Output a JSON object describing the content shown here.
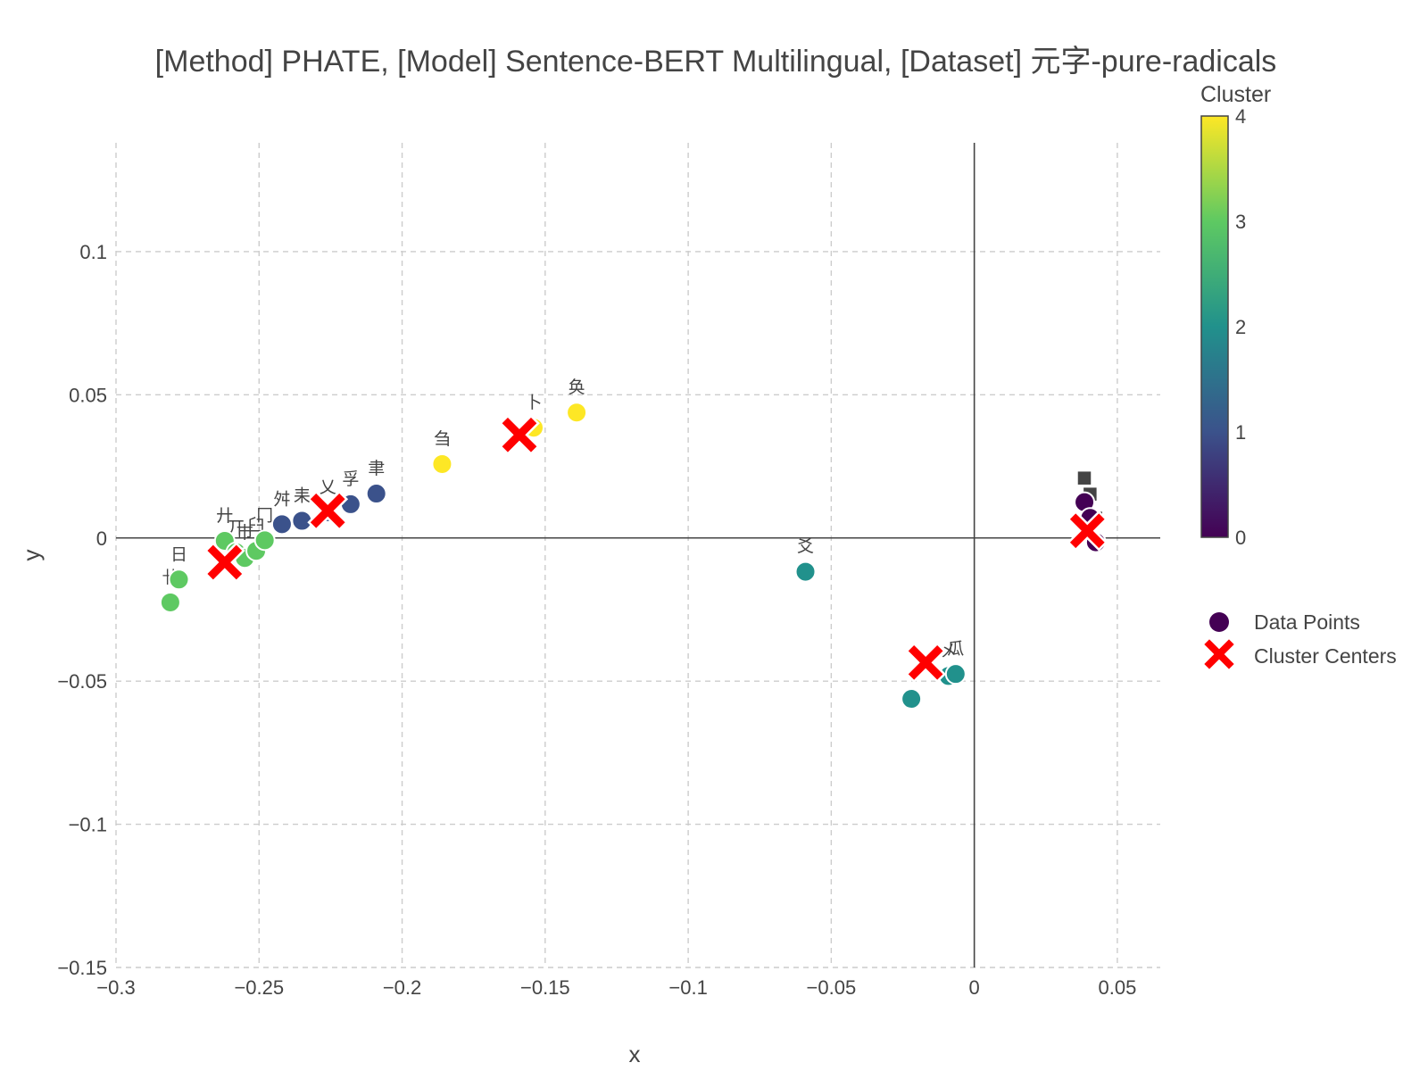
{
  "chart_data": {
    "type": "scatter",
    "title": "[Method] PHATE, [Model] Sentence-BERT Multilingual, [Dataset] 元字-pure-radicals",
    "xlabel": "x",
    "ylabel": "y",
    "xlim": [
      -0.3,
      0.065
    ],
    "ylim": [
      -0.15,
      0.138
    ],
    "xticks": [
      -0.3,
      -0.25,
      -0.2,
      -0.15,
      -0.1,
      -0.05,
      0,
      0.05
    ],
    "xtick_labels": [
      "−0.3",
      "−0.25",
      "−0.2",
      "−0.15",
      "−0.1",
      "−0.05",
      "0",
      "0.05"
    ],
    "yticks": [
      -0.15,
      -0.1,
      -0.05,
      0,
      0.05,
      0.1
    ],
    "ytick_labels": [
      "−0.15",
      "−0.1",
      "−0.05",
      "0",
      "0.05",
      "0.1"
    ],
    "grid": true,
    "colorbar": {
      "title": "Cluster",
      "min": 0,
      "max": 4,
      "ticks": [
        "0",
        "1",
        "2",
        "3",
        "4"
      ],
      "colorscale": [
        "#440154",
        "#3b528b",
        "#21918c",
        "#5ec962",
        "#fde725"
      ]
    },
    "legend": {
      "position": "right",
      "entries": [
        "Data Points",
        "Cluster Centers"
      ]
    },
    "data_points": [
      {
        "x": -0.281,
        "y": -0.0225,
        "cluster": 3,
        "label": "卄"
      },
      {
        "x": -0.278,
        "y": -0.0145,
        "cluster": 3,
        "label": "日"
      },
      {
        "x": -0.262,
        "y": -0.001,
        "cluster": 3,
        "label": "廾"
      },
      {
        "x": -0.258,
        "y": -0.005,
        "cluster": 3,
        "label": "丌"
      },
      {
        "x": -0.255,
        "y": -0.007,
        "cluster": 3,
        "label": "巿"
      },
      {
        "x": -0.251,
        "y": -0.0045,
        "cluster": 3,
        "label": "臼"
      },
      {
        "x": -0.248,
        "y": -0.0008,
        "cluster": 3,
        "label": "冂"
      },
      {
        "x": -0.242,
        "y": 0.0048,
        "cluster": 1,
        "label": "舛"
      },
      {
        "x": -0.235,
        "y": 0.006,
        "cluster": 1,
        "label": "耒"
      },
      {
        "x": -0.226,
        "y": 0.009,
        "cluster": 1,
        "label": "乂"
      },
      {
        "x": -0.218,
        "y": 0.0118,
        "cluster": 1,
        "label": "孚"
      },
      {
        "x": -0.209,
        "y": 0.0155,
        "cluster": 1,
        "label": "聿"
      },
      {
        "x": -0.186,
        "y": 0.0258,
        "cluster": 4,
        "label": "刍"
      },
      {
        "x": -0.154,
        "y": 0.0385,
        "cluster": 4,
        "label": "卜"
      },
      {
        "x": -0.139,
        "y": 0.0438,
        "cluster": 4,
        "label": "奂"
      },
      {
        "x": -0.059,
        "y": -0.0118,
        "cluster": 2,
        "label": "爻"
      },
      {
        "x": -0.022,
        "y": -0.0562,
        "cluster": 2,
        "label": ""
      },
      {
        "x": -0.009,
        "y": -0.0482,
        "cluster": 2,
        "label": "㐅"
      },
      {
        "x": -0.0065,
        "y": -0.0475,
        "cluster": 2,
        "label": "瓜"
      },
      {
        "x": 0.0385,
        "y": 0.0125,
        "cluster": 0,
        "label": "■"
      },
      {
        "x": 0.0405,
        "y": 0.007,
        "cluster": 0,
        "label": "■"
      },
      {
        "x": 0.0425,
        "y": -0.0015,
        "cluster": 0,
        "label": "■"
      }
    ],
    "cluster_centers": [
      {
        "x": -0.262,
        "y": -0.0085
      },
      {
        "x": -0.226,
        "y": 0.0095
      },
      {
        "x": -0.159,
        "y": 0.036
      },
      {
        "x": -0.017,
        "y": -0.0435
      },
      {
        "x": 0.0395,
        "y": 0.0025
      }
    ]
  }
}
